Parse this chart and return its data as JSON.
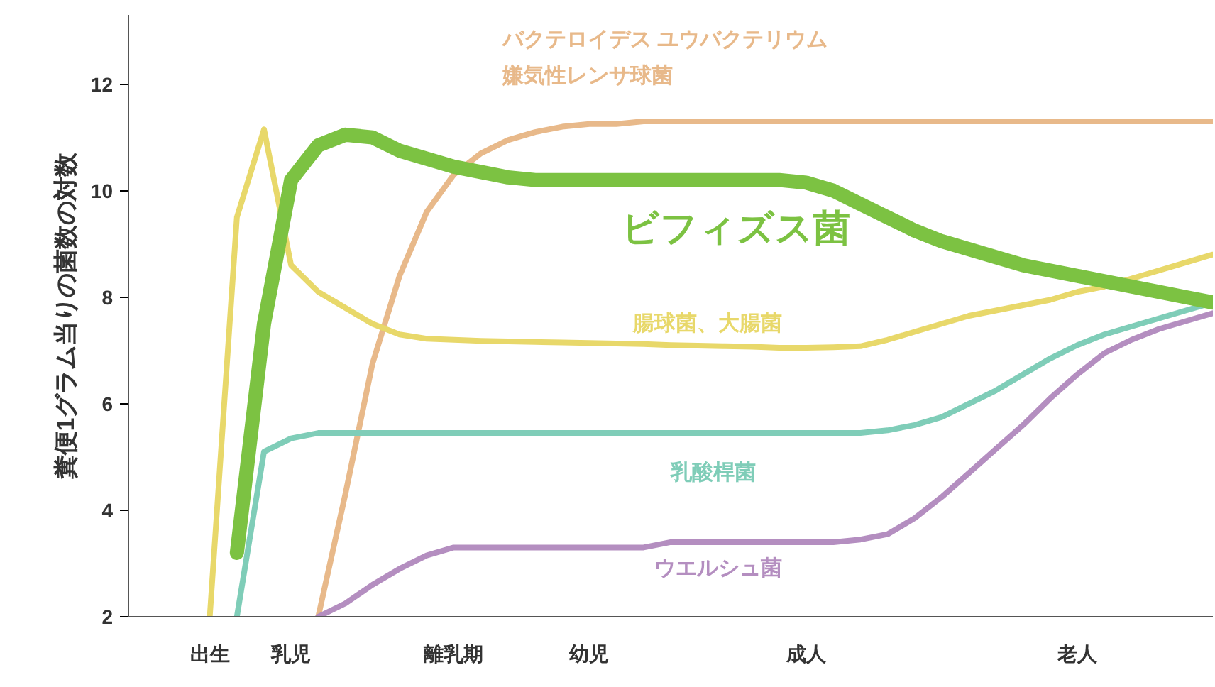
{
  "chart_data": {
    "type": "line",
    "ylabel": "糞便1グラム当りの菌数の対数",
    "ylim": [
      2,
      13.3
    ],
    "yticks": [
      2,
      4,
      6,
      8,
      10,
      12
    ],
    "categories": [
      null,
      null,
      null,
      "出生",
      null,
      null,
      "乳児",
      null,
      null,
      null,
      null,
      null,
      "離乳期",
      null,
      null,
      null,
      null,
      "幼児",
      null,
      null,
      null,
      null,
      null,
      null,
      null,
      "成人",
      null,
      null,
      null,
      null,
      null,
      null,
      null,
      null,
      null,
      "老人",
      null,
      null,
      null,
      null,
      null
    ],
    "grid": false,
    "marker": "none",
    "line_style": "solid",
    "series": [
      {
        "name": "バクテロイデス ユウバクテリウム嫌気性レンサ球菌",
        "color": "#e8b98a",
        "values": [
          null,
          null,
          null,
          null,
          null,
          null,
          null,
          2,
          4.3,
          6.75,
          8.4,
          9.6,
          10.3,
          10.7,
          10.95,
          11.1,
          11.2,
          11.25,
          11.25,
          11.3,
          11.3,
          11.3,
          11.3,
          11.3,
          11.3,
          11.3,
          11.3,
          11.3,
          11.3,
          11.3,
          11.3,
          11.3,
          11.3,
          11.3,
          11.3,
          11.3,
          11.3,
          11.3,
          11.3,
          11.3,
          11.3
        ]
      },
      {
        "name": "腸球菌、大腸菌",
        "color": "#e8d86a",
        "values": [
          null,
          null,
          null,
          2,
          9.5,
          11.15,
          8.6,
          8.1,
          7.8,
          7.5,
          7.3,
          7.22,
          7.2,
          7.18,
          7.17,
          7.16,
          7.15,
          7.14,
          7.13,
          7.12,
          7.1,
          7.09,
          7.08,
          7.07,
          7.05,
          7.05,
          7.06,
          7.08,
          7.2,
          7.35,
          7.5,
          7.65,
          7.75,
          7.85,
          7.95,
          8.1,
          8.2,
          8.35,
          8.5,
          8.65,
          8.8
        ]
      },
      {
        "name": "乳酸桿菌",
        "color": "#7fcdb8",
        "values": [
          null,
          null,
          null,
          null,
          2,
          5.1,
          5.35,
          5.45,
          5.45,
          5.45,
          5.45,
          5.45,
          5.45,
          5.45,
          5.45,
          5.45,
          5.45,
          5.45,
          5.45,
          5.45,
          5.45,
          5.45,
          5.45,
          5.45,
          5.45,
          5.45,
          5.45,
          5.45,
          5.5,
          5.6,
          5.75,
          6.0,
          6.25,
          6.55,
          6.85,
          7.1,
          7.3,
          7.45,
          7.6,
          7.75,
          7.9
        ]
      },
      {
        "name": "ウエルシュ菌",
        "color": "#b48ec0",
        "values": [
          null,
          null,
          null,
          null,
          null,
          null,
          null,
          2,
          2.25,
          2.6,
          2.9,
          3.15,
          3.3,
          3.3,
          3.3,
          3.3,
          3.3,
          3.3,
          3.3,
          3.3,
          3.4,
          3.4,
          3.4,
          3.4,
          3.4,
          3.4,
          3.4,
          3.45,
          3.55,
          3.85,
          4.25,
          4.7,
          5.15,
          5.6,
          6.1,
          6.55,
          6.95,
          7.2,
          7.4,
          7.55,
          7.7
        ]
      },
      {
        "name": "ビフィズス菌",
        "color": "#7cc242",
        "values": [
          null,
          null,
          null,
          null,
          3.2,
          7.5,
          10.2,
          10.85,
          11.05,
          11.0,
          10.75,
          10.6,
          10.45,
          10.35,
          10.25,
          10.2,
          10.2,
          10.2,
          10.2,
          10.2,
          10.2,
          10.2,
          10.2,
          10.2,
          10.2,
          10.15,
          10.0,
          9.75,
          9.5,
          9.25,
          9.05,
          8.9,
          8.75,
          8.6,
          8.5,
          8.4,
          8.3,
          8.2,
          8.1,
          8.0,
          7.9
        ]
      }
    ]
  }
}
